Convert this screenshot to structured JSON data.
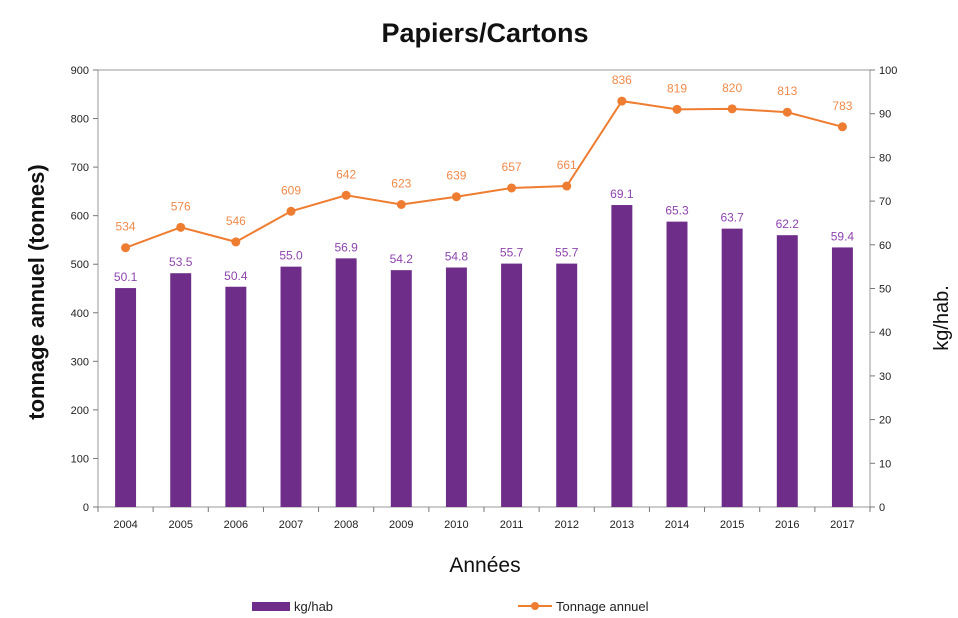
{
  "chart_data": {
    "type": "bar",
    "title": "Papiers/Cartons",
    "xlabel": "Années",
    "ylabel_left": "tonnage annuel (tonnes)",
    "ylabel_right": "kg/hab.",
    "ylim_left": [
      0,
      900
    ],
    "ylim_right": [
      0,
      100
    ],
    "yticks_left": [
      "0",
      "100",
      "200",
      "300",
      "400",
      "500",
      "600",
      "700",
      "800",
      "900"
    ],
    "yticks_right": [
      "0",
      "10",
      "20",
      "30",
      "40",
      "50",
      "60",
      "70",
      "80",
      "90",
      "100"
    ],
    "categories": [
      "2004",
      "2005",
      "2006",
      "2007",
      "2008",
      "2009",
      "2010",
      "2011",
      "2012",
      "2013",
      "2014",
      "2015",
      "2016",
      "2017"
    ],
    "series": [
      {
        "name": "kg/hab",
        "type": "bar",
        "axis": "right",
        "color": "#6f2d8a",
        "label_color": "#8e44ad",
        "values": [
          50.1,
          53.5,
          50.4,
          55.0,
          56.9,
          54.2,
          54.8,
          55.7,
          55.7,
          69.1,
          65.3,
          63.7,
          62.2,
          59.4
        ],
        "labels": [
          "50.1",
          "53.5",
          "50.4",
          "55.0",
          "56.9",
          "54.2",
          "54.8",
          "55.7",
          "55.7",
          "69.1",
          "65.3",
          "63.7",
          "62.2",
          "59.4"
        ]
      },
      {
        "name": "Tonnage annuel",
        "type": "line",
        "axis": "left",
        "color": "#ee7d31",
        "label_color": "#f08a4b",
        "values": [
          534,
          576,
          546,
          609,
          642,
          623,
          639,
          657,
          661,
          836,
          819,
          820,
          813,
          783
        ],
        "labels": [
          "534",
          "576",
          "546",
          "609",
          "642",
          "623",
          "639",
          "657",
          "661",
          "836",
          "819",
          "820",
          "813",
          "783"
        ]
      }
    ],
    "legend_position": "bottom",
    "grid": false
  }
}
